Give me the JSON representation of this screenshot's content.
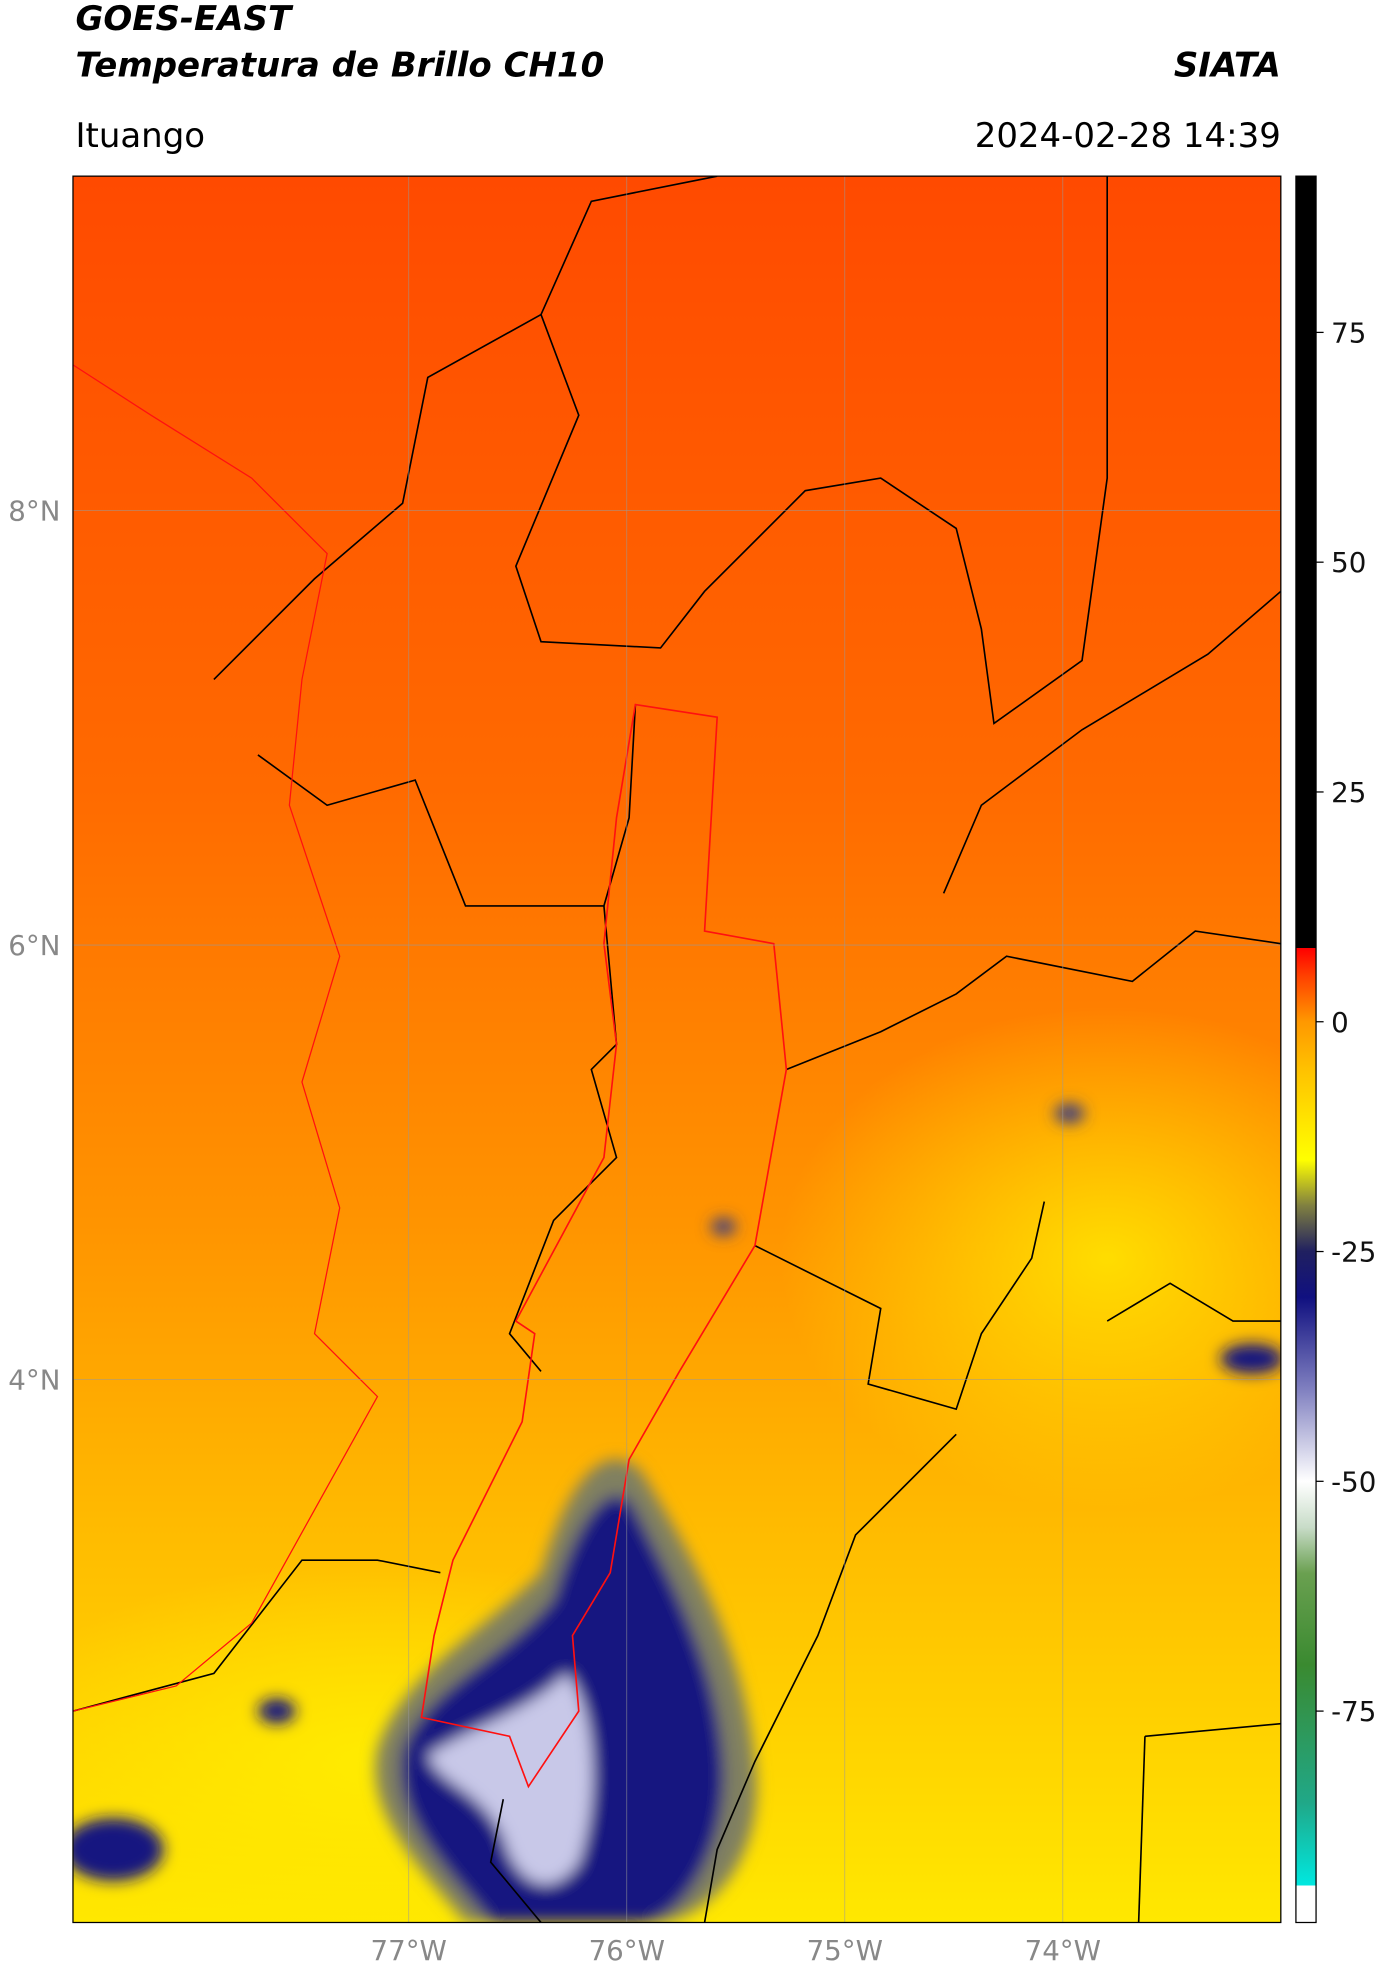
{
  "header": {
    "title": "GOES-EAST",
    "subtitle": "Temperatura de Brillo CH10",
    "source": "SIATA",
    "location": "Ituango",
    "datetime": "2024-02-28 14:39"
  },
  "map": {
    "lon_range": [
      -78.54,
      -73.0
    ],
    "lat_range": [
      1.5,
      9.54
    ],
    "lon_ticks": [
      {
        "value": -77,
        "label": "77°W"
      },
      {
        "value": -76,
        "label": "76°W"
      },
      {
        "value": -75,
        "label": "75°W"
      },
      {
        "value": -74,
        "label": "74°W"
      }
    ],
    "lat_ticks": [
      {
        "value": 8,
        "label": "8°N"
      },
      {
        "value": 6,
        "label": "6°N"
      },
      {
        "value": 4,
        "label": "4°N"
      }
    ]
  },
  "colorbar": {
    "range": [
      -98,
      92
    ],
    "ticks": [
      75,
      50,
      25,
      0,
      -25,
      -50,
      -75
    ],
    "colormap": [
      {
        "value": -98,
        "color": "#ffffff"
      },
      {
        "value": -94,
        "color": "#ffffff"
      },
      {
        "value": -94,
        "color": "#00e8e0"
      },
      {
        "value": -85,
        "color": "#20a888"
      },
      {
        "value": -70,
        "color": "#3a8a30"
      },
      {
        "value": -60,
        "color": "#6aa050"
      },
      {
        "value": -55,
        "color": "#c8dcc8"
      },
      {
        "value": -50,
        "color": "#ffffff"
      },
      {
        "value": -40,
        "color": "#8080c0"
      },
      {
        "value": -30,
        "color": "#101080"
      },
      {
        "value": -25,
        "color": "#202060"
      },
      {
        "value": -20,
        "color": "#808040"
      },
      {
        "value": -15,
        "color": "#ffff00"
      },
      {
        "value": -5,
        "color": "#ffc000"
      },
      {
        "value": 0,
        "color": "#ff9800"
      },
      {
        "value": 5,
        "color": "#ff4000"
      },
      {
        "value": 8,
        "color": "#ff0000"
      },
      {
        "value": 8,
        "color": "#000000"
      },
      {
        "value": 92,
        "color": "#000000"
      }
    ]
  }
}
